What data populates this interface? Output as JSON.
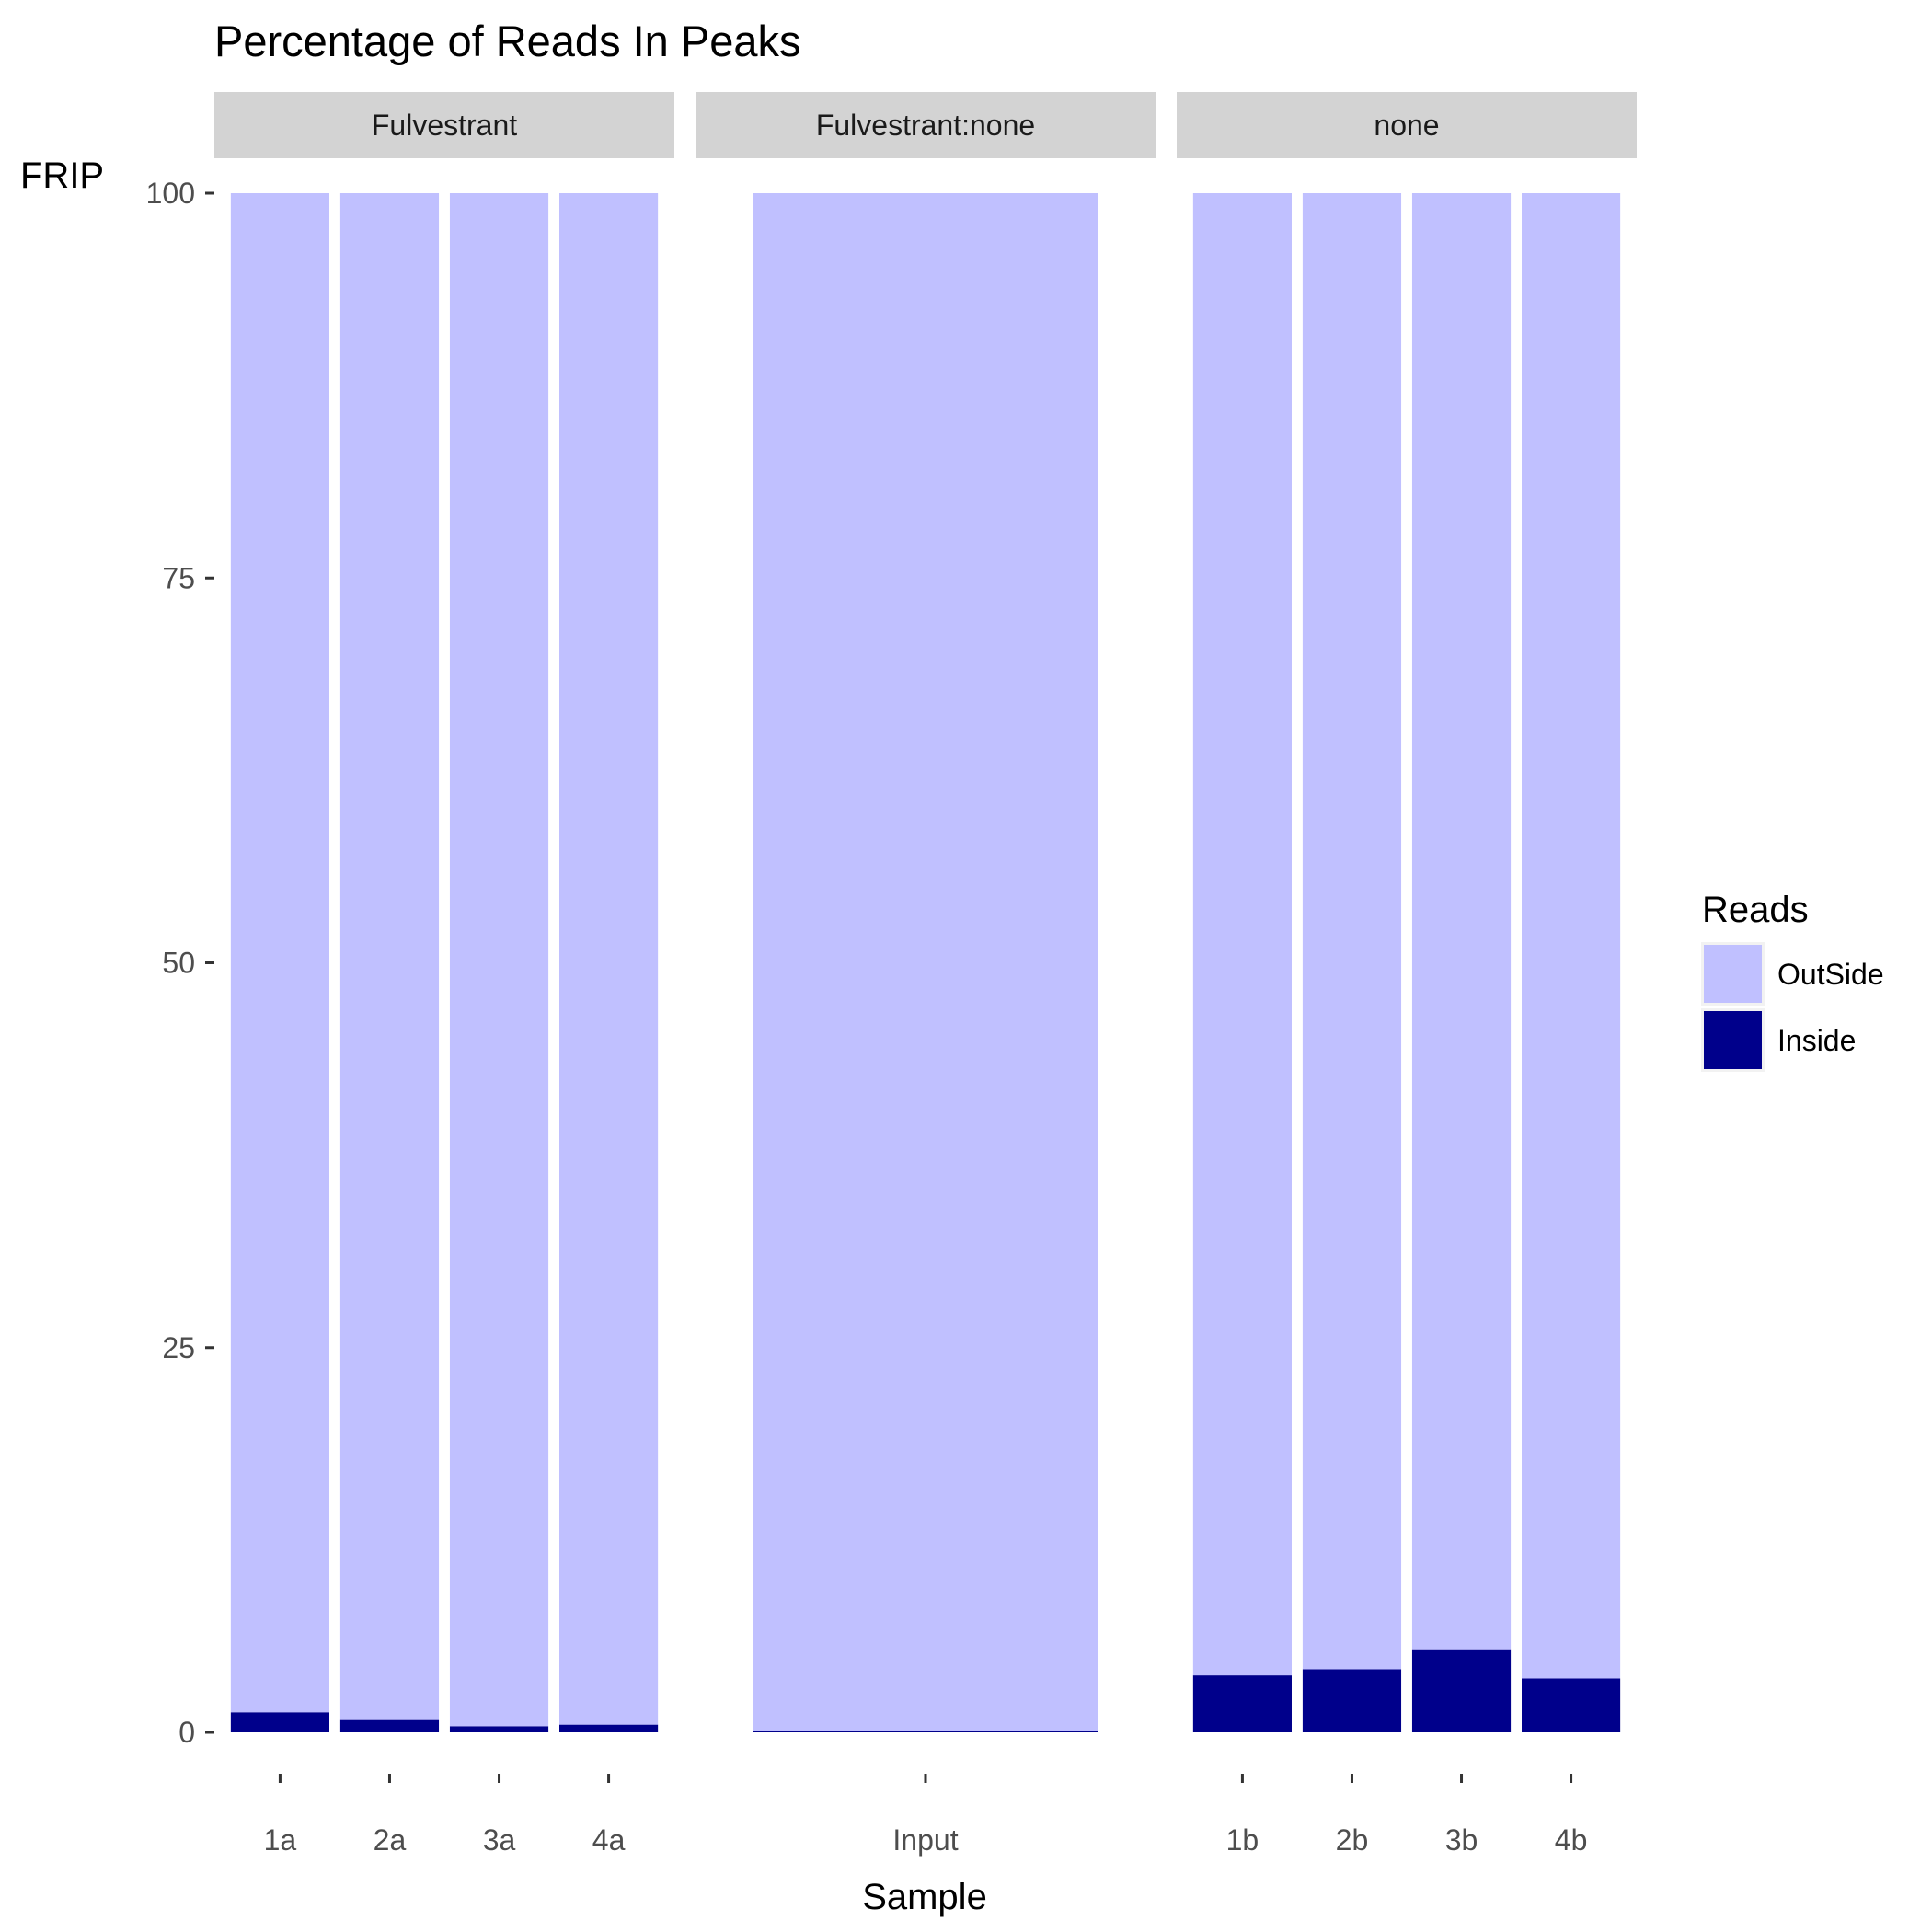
{
  "chart_data": {
    "type": "bar",
    "stacked": true,
    "title": "Percentage of Reads In Peaks",
    "xlabel": "Sample",
    "ylabel": "FRIP",
    "ylim": [
      0,
      100
    ],
    "yticks": [
      0,
      25,
      50,
      75,
      100
    ],
    "grid": false,
    "legend": {
      "title": "Reads",
      "position": "right",
      "entries": [
        {
          "name": "OutSide",
          "color": "#c0c0ff"
        },
        {
          "name": "Inside",
          "color": "#00008b"
        }
      ]
    },
    "facets": [
      {
        "label": "Fulvestrant",
        "categories": [
          "1a",
          "2a",
          "3a",
          "4a"
        ],
        "series": [
          {
            "name": "Inside",
            "values": [
              1.3,
              0.8,
              0.4,
              0.5
            ]
          },
          {
            "name": "OutSide",
            "values": [
              98.7,
              99.2,
              99.6,
              99.5
            ]
          }
        ]
      },
      {
        "label": "Fulvestrant:none",
        "categories": [
          "Input"
        ],
        "series": [
          {
            "name": "Inside",
            "values": [
              0.1
            ]
          },
          {
            "name": "OutSide",
            "values": [
              99.9
            ]
          }
        ]
      },
      {
        "label": "none",
        "categories": [
          "1b",
          "2b",
          "3b",
          "4b"
        ],
        "series": [
          {
            "name": "Inside",
            "values": [
              3.7,
              4.1,
              5.4,
              3.5
            ]
          },
          {
            "name": "OutSide",
            "values": [
              96.3,
              95.9,
              94.6,
              96.5
            ]
          }
        ]
      }
    ]
  }
}
